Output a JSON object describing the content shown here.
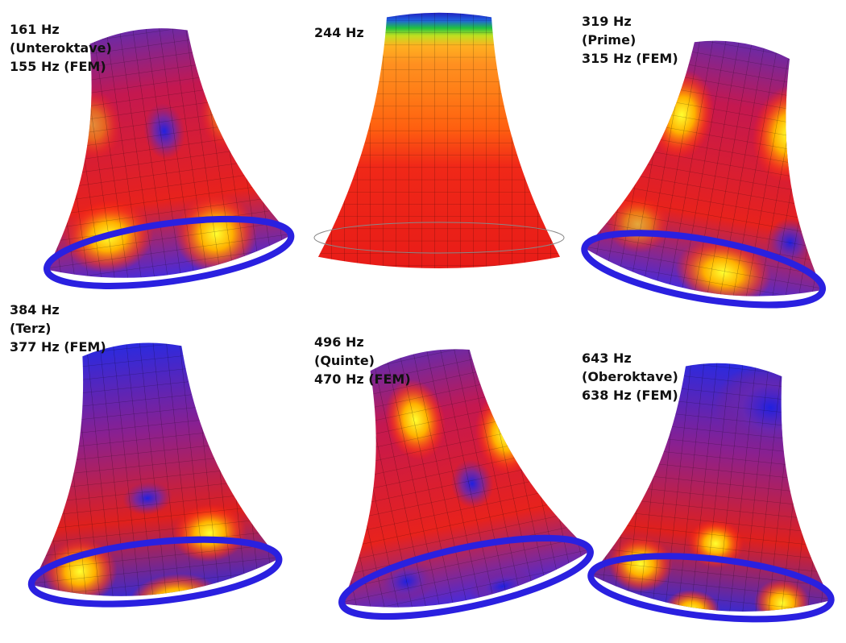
{
  "panels": [
    {
      "lines": [
        "161 Hz",
        "(Unteroktave)",
        "155 Hz (FEM)"
      ]
    },
    {
      "lines": [
        "244 Hz"
      ]
    },
    {
      "lines": [
        "319 Hz",
        "(Prime)",
        "315 Hz (FEM)"
      ]
    },
    {
      "lines": [
        "384 Hz",
        "(Terz)",
        "377 Hz (FEM)"
      ]
    },
    {
      "lines": [
        "496 Hz",
        "(Quinte)",
        "470 Hz (FEM)"
      ]
    },
    {
      "lines": [
        "643 Hz",
        "(Oberoktave)",
        "638 Hz (FEM)"
      ]
    }
  ]
}
